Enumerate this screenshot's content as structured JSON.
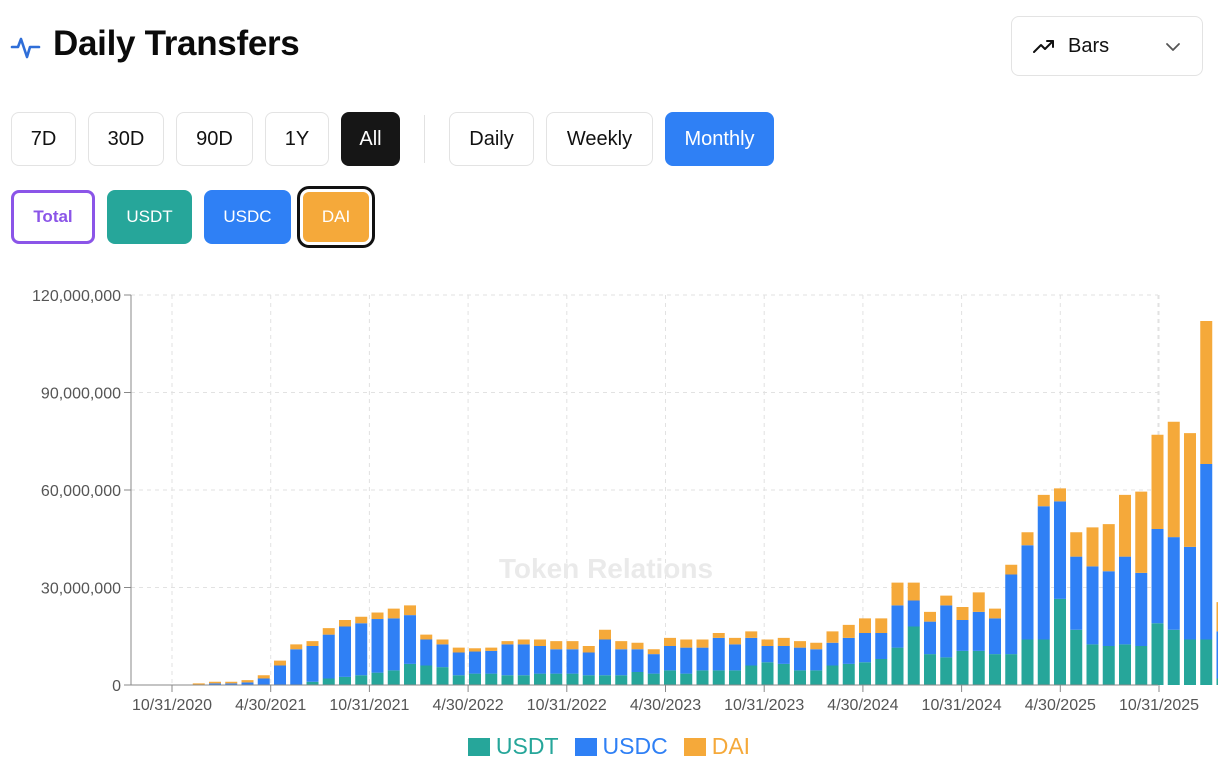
{
  "header": {
    "title": "Daily Transfers",
    "view_select": {
      "label": "Bars"
    }
  },
  "range_buttons": [
    {
      "label": "7D",
      "active": false
    },
    {
      "label": "30D",
      "active": false
    },
    {
      "label": "90D",
      "active": false
    },
    {
      "label": "1Y",
      "active": false
    },
    {
      "label": "All",
      "active": true
    }
  ],
  "interval_buttons": [
    {
      "label": "Daily",
      "active": false
    },
    {
      "label": "Weekly",
      "active": false
    },
    {
      "label": "Monthly",
      "active": true
    }
  ],
  "token_toggles": [
    {
      "label": "Total",
      "color": "#8b55e8"
    },
    {
      "label": "USDT",
      "color": "#26a69a"
    },
    {
      "label": "USDC",
      "color": "#2f80f5"
    },
    {
      "label": "DAI",
      "color": "#f5a93a"
    }
  ],
  "watermark": "Token Relations",
  "colors": {
    "usdt": "#26a69a",
    "usdc": "#2f80f5",
    "dai": "#f5a93a",
    "accent": "#2f80f5"
  },
  "chart_data": {
    "type": "bar",
    "stacked": true,
    "x_ticks": [
      "10/31/2020",
      "4/30/2021",
      "10/31/2021",
      "4/30/2022",
      "10/31/2022",
      "4/30/2023",
      "10/31/2023",
      "4/30/2024",
      "10/31/2024",
      "4/30/2025",
      "10/31/2025"
    ],
    "y_ticks": [
      "0",
      "30,000,000",
      "60,000,000",
      "90,000,000",
      "120,000,000"
    ],
    "ylim": [
      0,
      120000000
    ],
    "grid": true,
    "legend_position": "bottom",
    "series": [
      {
        "name": "USDT",
        "color": "#26a69a",
        "values": [
          0,
          0,
          0,
          0,
          0,
          0,
          0,
          0,
          1000000,
          2000000,
          2500000,
          3000000,
          3800000,
          4500000,
          6500000,
          6000000,
          5500000,
          3000000,
          3500000,
          3500000,
          3000000,
          3000000,
          3500000,
          3500000,
          3500000,
          3000000,
          3000000,
          3000000,
          4000000,
          3500000,
          4500000,
          3500000,
          4500000,
          4500000,
          4500000,
          6000000,
          7000000,
          6500000,
          4500000,
          4500000,
          6000000,
          6500000,
          7000000,
          8000000,
          11500000,
          18000000,
          9500000,
          8500000,
          10500000,
          10500000,
          9500000,
          9500000,
          14000000,
          14000000,
          26500000,
          17000000,
          12500000,
          12000000,
          12500000,
          12000000,
          19000000,
          17000000,
          14000000,
          14000000,
          2000000
        ]
      },
      {
        "name": "USDC",
        "color": "#2f80f5",
        "values": [
          0,
          0,
          500000,
          500000,
          800000,
          2000000,
          6000000,
          11000000,
          11000000,
          13500000,
          15500000,
          16000000,
          16500000,
          16000000,
          15000000,
          8000000,
          7000000,
          7000000,
          6800000,
          7000000,
          9500000,
          9500000,
          8500000,
          7500000,
          7500000,
          7000000,
          11000000,
          8000000,
          7000000,
          6000000,
          7500000,
          8000000,
          7000000,
          10000000,
          8000000,
          8500000,
          5000000,
          5500000,
          7000000,
          6500000,
          7000000,
          8000000,
          9000000,
          8000000,
          13000000,
          8000000,
          10000000,
          16000000,
          9500000,
          12000000,
          11000000,
          24500000,
          29000000,
          41000000,
          30000000,
          22500000,
          24000000,
          23000000,
          27000000,
          22500000,
          29000000,
          28500000,
          28500000,
          54000000,
          14500000
        ]
      },
      {
        "name": "DAI",
        "color": "#f5a93a",
        "values": [
          0,
          500000,
          500000,
          500000,
          700000,
          1000000,
          1500000,
          1500000,
          1500000,
          2000000,
          2000000,
          2000000,
          2000000,
          3000000,
          3000000,
          1500000,
          1500000,
          1500000,
          1000000,
          1000000,
          1000000,
          1500000,
          2000000,
          2500000,
          2500000,
          2000000,
          3000000,
          2500000,
          2000000,
          1500000,
          2500000,
          2500000,
          2500000,
          1500000,
          2000000,
          2000000,
          2000000,
          2500000,
          2000000,
          2000000,
          3500000,
          4000000,
          4500000,
          4500000,
          7000000,
          5500000,
          3000000,
          3000000,
          4000000,
          6000000,
          3000000,
          3000000,
          4000000,
          3500000,
          4000000,
          7500000,
          12000000,
          14500000,
          19000000,
          25000000,
          29000000,
          35500000,
          35000000,
          44000000,
          9000000
        ]
      }
    ]
  }
}
